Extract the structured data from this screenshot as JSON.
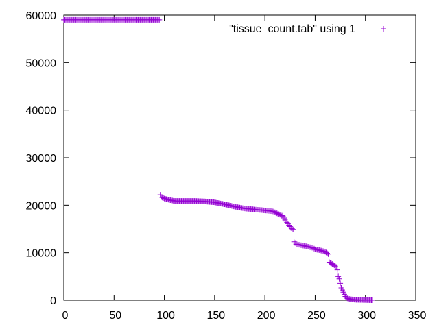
{
  "chart_data": {
    "type": "scatter",
    "title": "",
    "xlabel": "",
    "ylabel": "",
    "xlim": [
      0,
      350
    ],
    "ylim": [
      0,
      60000
    ],
    "xticks": [
      0,
      50,
      100,
      150,
      200,
      250,
      300,
      350
    ],
    "yticks": [
      0,
      10000,
      20000,
      30000,
      40000,
      50000,
      60000
    ],
    "xtick_labels": [
      "0",
      "50",
      "100",
      "150",
      "200",
      "250",
      "300",
      "350"
    ],
    "ytick_labels": [
      "0",
      "10000",
      "20000",
      "30000",
      "40000",
      "50000",
      "60000"
    ],
    "grid": false,
    "legend_position": "top-right",
    "series": [
      {
        "name": "\"tissue_count.tab\" using 1",
        "color": "#9400d3",
        "marker": "plus",
        "segments": [
          {
            "x_start": 0,
            "x_end": 95,
            "step": 1,
            "y_points": [
              [
                0,
                59000
              ],
              [
                95,
                59000
              ]
            ]
          },
          {
            "x_start": 96,
            "x_end": 307,
            "step": 1,
            "y_points": [
              [
                96,
                22200
              ],
              [
                97,
                21700
              ],
              [
                100,
                21400
              ],
              [
                105,
                21100
              ],
              [
                110,
                20900
              ],
              [
                130,
                20900
              ],
              [
                140,
                20800
              ],
              [
                150,
                20600
              ],
              [
                160,
                20200
              ],
              [
                170,
                19700
              ],
              [
                180,
                19300
              ],
              [
                190,
                19100
              ],
              [
                200,
                18900
              ],
              [
                208,
                18700
              ],
              [
                213,
                18200
              ],
              [
                218,
                17700
              ],
              [
                220,
                16900
              ],
              [
                223,
                16100
              ],
              [
                226,
                15200
              ],
              [
                228,
                14900
              ],
              [
                229,
                12300
              ],
              [
                231,
                11800
              ],
              [
                240,
                11400
              ],
              [
                248,
                11000
              ],
              [
                250,
                10700
              ],
              [
                255,
                10500
              ],
              [
                260,
                10200
              ],
              [
                263,
                9700
              ],
              [
                264,
                8000
              ],
              [
                268,
                7500
              ],
              [
                271,
                7000
              ],
              [
                272,
                6400
              ],
              [
                273,
                5000
              ],
              [
                274,
                4500
              ],
              [
                276,
                2600
              ],
              [
                278,
                1700
              ],
              [
                280,
                800
              ],
              [
                282,
                400
              ],
              [
                285,
                200
              ],
              [
                290,
                100
              ],
              [
                300,
                50
              ],
              [
                307,
                0
              ]
            ]
          }
        ]
      }
    ]
  }
}
